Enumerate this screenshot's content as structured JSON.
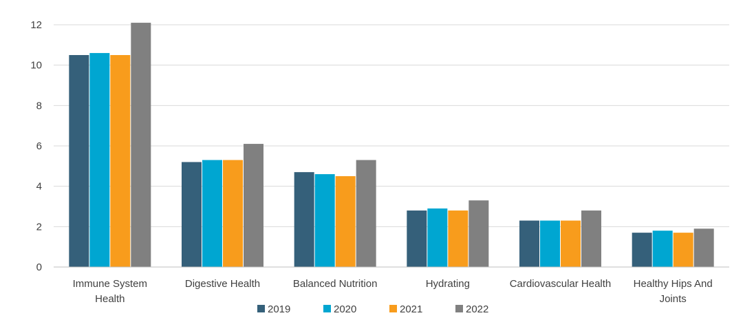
{
  "chart_data": {
    "type": "bar",
    "title": "",
    "xlabel": "",
    "ylabel": "",
    "ylim": [
      0,
      12
    ],
    "yticks": [
      0,
      2,
      4,
      6,
      8,
      10,
      12
    ],
    "grid": true,
    "legend_position": "bottom",
    "categories": [
      [
        "Immune System",
        "Health"
      ],
      [
        "Digestive Health"
      ],
      [
        "Balanced Nutrition"
      ],
      [
        "Hydrating"
      ],
      [
        "Cardiovascular Health"
      ],
      [
        "Healthy Hips And",
        "Joints"
      ]
    ],
    "series": [
      {
        "name": "2019",
        "color": "#35607a",
        "values": [
          10.5,
          5.2,
          4.7,
          2.8,
          2.3,
          1.7
        ]
      },
      {
        "name": "2020",
        "color": "#00a6d1",
        "values": [
          10.6,
          5.3,
          4.6,
          2.9,
          2.3,
          1.8
        ]
      },
      {
        "name": "2021",
        "color": "#f89c1c",
        "values": [
          10.5,
          5.3,
          4.5,
          2.8,
          2.3,
          1.7
        ]
      },
      {
        "name": "2022",
        "color": "#808080",
        "values": [
          12.1,
          6.1,
          5.3,
          3.3,
          2.8,
          1.9
        ]
      }
    ]
  }
}
